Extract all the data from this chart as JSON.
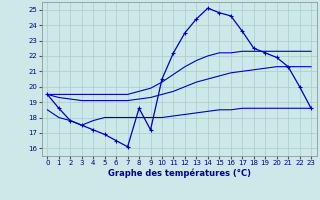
{
  "title": "Graphe des températures (°C)",
  "bg_color": "#cce8e8",
  "grid_color": "#aacccc",
  "line_color": "#0000cc",
  "xlim": [
    -0.5,
    23.5
  ],
  "ylim": [
    15.5,
    25.5
  ],
  "xticks": [
    0,
    1,
    2,
    3,
    4,
    5,
    6,
    7,
    8,
    9,
    10,
    11,
    12,
    13,
    14,
    15,
    16,
    17,
    18,
    19,
    20,
    21,
    22,
    23
  ],
  "yticks": [
    16,
    17,
    18,
    19,
    20,
    21,
    22,
    23,
    24,
    25
  ],
  "hours": [
    0,
    1,
    2,
    3,
    4,
    5,
    6,
    7,
    8,
    9,
    10,
    11,
    12,
    13,
    14,
    15,
    16,
    17,
    18,
    19,
    20,
    21,
    22,
    23
  ],
  "temp_main": [
    19.5,
    18.6,
    17.8,
    17.5,
    17.2,
    16.9,
    16.5,
    16.1,
    18.6,
    17.2,
    20.5,
    22.2,
    23.5,
    24.4,
    25.1,
    24.8,
    24.6,
    23.6,
    22.5,
    22.2,
    21.9,
    21.3,
    20.0,
    18.6
  ],
  "temp_min": [
    18.5,
    18.0,
    17.8,
    17.5,
    17.8,
    18.0,
    18.0,
    18.0,
    18.0,
    18.0,
    18.0,
    18.1,
    18.2,
    18.3,
    18.4,
    18.5,
    18.5,
    18.6,
    18.6,
    18.6,
    18.6,
    18.6,
    18.6,
    18.6
  ],
  "temp_avg": [
    19.5,
    19.3,
    19.2,
    19.1,
    19.1,
    19.1,
    19.1,
    19.1,
    19.2,
    19.3,
    19.5,
    19.7,
    20.0,
    20.3,
    20.5,
    20.7,
    20.9,
    21.0,
    21.1,
    21.2,
    21.3,
    21.3,
    21.3,
    21.3
  ],
  "temp_max": [
    19.5,
    19.5,
    19.5,
    19.5,
    19.5,
    19.5,
    19.5,
    19.5,
    19.7,
    19.9,
    20.3,
    20.8,
    21.3,
    21.7,
    22.0,
    22.2,
    22.2,
    22.3,
    22.3,
    22.3,
    22.3,
    22.3,
    22.3,
    22.3
  ]
}
